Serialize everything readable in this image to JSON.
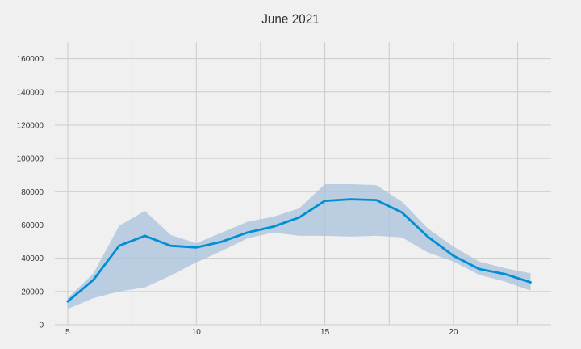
{
  "chart_data": {
    "type": "line",
    "title": "June 2021",
    "xlabel": "",
    "ylabel": "",
    "xlim": [
      4.5,
      23.8
    ],
    "ylim": [
      0,
      170000
    ],
    "x_ticks": [
      5,
      10,
      15,
      20
    ],
    "y_ticks": [
      0,
      20000,
      40000,
      60000,
      80000,
      100000,
      120000,
      140000,
      160000
    ],
    "grid": true,
    "legend": "none",
    "colors": {
      "background": "#f0f0f0",
      "grid": "#cbcbcb",
      "line": "#008fd5",
      "band": "#a9c1dc"
    },
    "series": [
      {
        "x": [
          5,
          6,
          7,
          8,
          9,
          10,
          11,
          12,
          13,
          14,
          15,
          16,
          17,
          18,
          19,
          20,
          21,
          22,
          23
        ],
        "values": [
          14000,
          27000,
          47500,
          53500,
          47500,
          46500,
          50000,
          55500,
          59000,
          64500,
          74500,
          75500,
          75000,
          67500,
          53000,
          41500,
          33500,
          30500,
          25500
        ],
        "lower": [
          9500,
          16000,
          20000,
          22500,
          29500,
          37500,
          44500,
          52000,
          55500,
          53500,
          53500,
          53000,
          53500,
          52500,
          43500,
          38000,
          30000,
          26000,
          20500
        ],
        "upper": [
          16000,
          31000,
          59500,
          68500,
          54000,
          49000,
          55500,
          62000,
          65000,
          70000,
          84500,
          84500,
          84000,
          74000,
          58000,
          47000,
          38000,
          34000,
          31000
        ]
      }
    ]
  }
}
